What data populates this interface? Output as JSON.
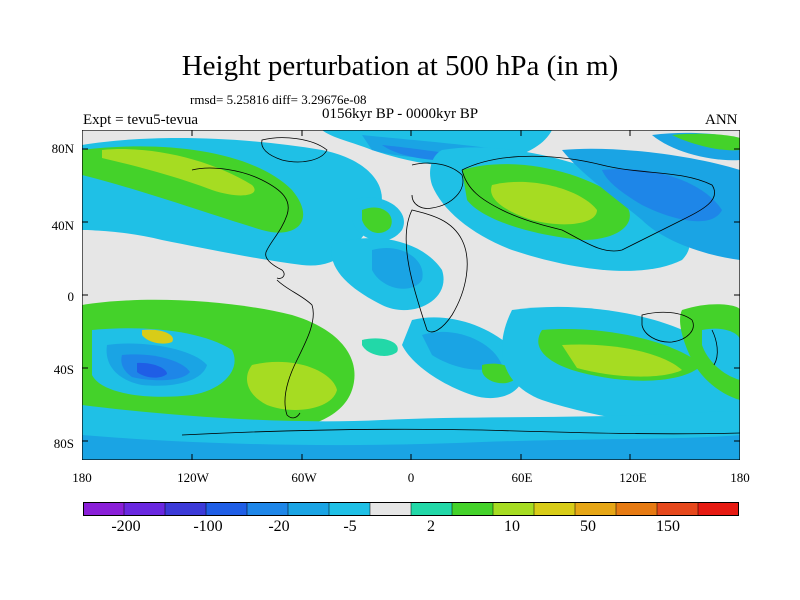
{
  "title": "Height perturbation at 500 hPa (in m)",
  "stats": "rmsd= 5.25816 diff= 3.29676e-08",
  "experiment": "Expt = tevu5-tevua",
  "period": "0156kyr BP - 0000kyr BP",
  "season": "ANN",
  "axes": {
    "lat_labels": [
      "80N",
      "40N",
      "0",
      "40S",
      "80S"
    ],
    "lon_labels": [
      "180",
      "120W",
      "60W",
      "0",
      "60E",
      "120E",
      "180"
    ]
  },
  "colorbar": {
    "colors": [
      "#8a1fd8",
      "#6a28e0",
      "#3c3ad8",
      "#1f5ee6",
      "#1e86e8",
      "#1aa4e4",
      "#1fc0e6",
      "#e6e6e6",
      "#22d8a8",
      "#44d22a",
      "#a6dc22",
      "#d8cc18",
      "#e6a616",
      "#e67a12",
      "#e6481c",
      "#e61a12"
    ],
    "labels": [
      "-200",
      "-100",
      "-20",
      "-5",
      "2",
      "10",
      "50",
      "150"
    ]
  }
}
